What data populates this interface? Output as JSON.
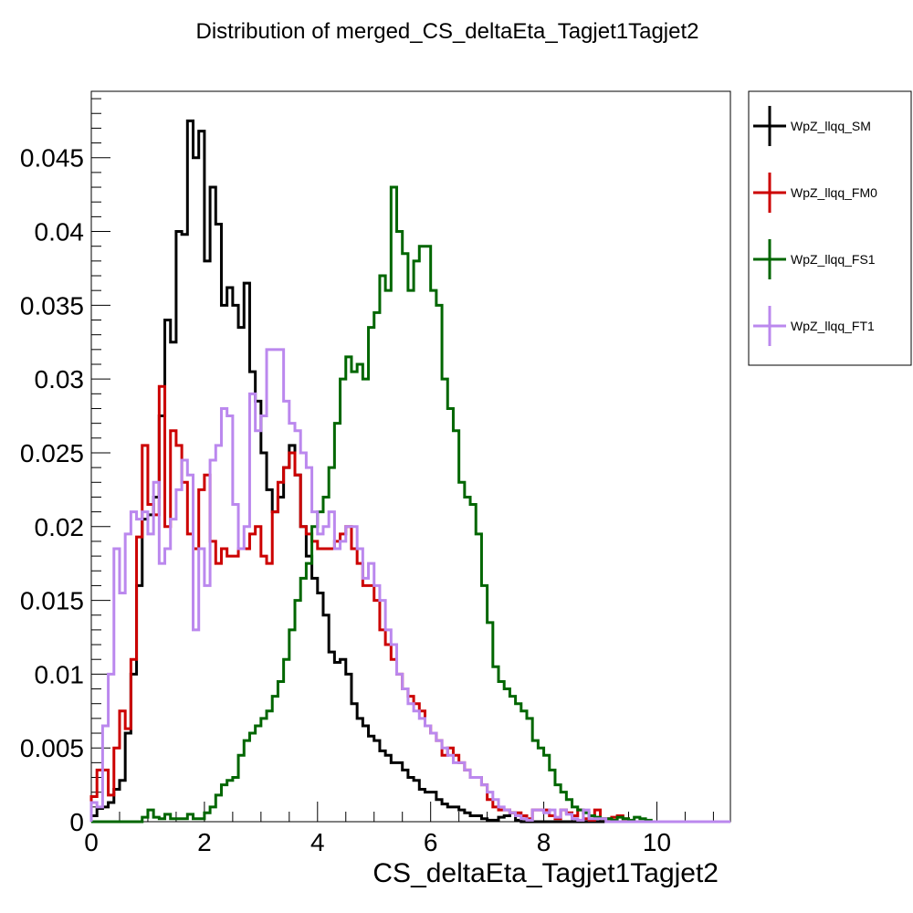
{
  "chart_data": {
    "type": "line",
    "title": "Distribution of merged_CS_deltaEta_Tagjet1Tagjet2",
    "xlabel": "CS_deltaEta_Tagjet1Tagjet2",
    "ylabel": "",
    "xlim": [
      0,
      11.3
    ],
    "ylim": [
      0,
      0.0495
    ],
    "x_ticks": [
      0,
      2,
      4,
      6,
      8,
      10
    ],
    "x_tick_labels": [
      "0",
      "2",
      "4",
      "6",
      "8",
      "10"
    ],
    "y_ticks": [
      0,
      0.005,
      0.01,
      0.015,
      0.02,
      0.025,
      0.03,
      0.035,
      0.04,
      0.045
    ],
    "y_tick_labels": [
      "0",
      "0.005",
      "0.01",
      "0.015",
      "0.02",
      "0.025",
      "0.03",
      "0.035",
      "0.04",
      "0.045"
    ],
    "bin_edges": [
      0,
      0.1,
      0.2,
      0.3,
      0.4,
      0.5,
      0.6,
      0.7,
      0.8,
      0.9,
      1.0,
      1.1,
      1.2,
      1.3,
      1.4,
      1.5,
      1.6,
      1.7,
      1.8,
      1.9,
      2.0,
      2.1,
      2.2,
      2.3,
      2.4,
      2.5,
      2.6,
      2.7,
      2.8,
      2.9,
      3.0,
      3.1,
      3.2,
      3.3,
      3.4,
      3.5,
      3.6,
      3.7,
      3.8,
      3.9,
      4.0,
      4.1,
      4.2,
      4.3,
      4.4,
      4.5,
      4.6,
      4.7,
      4.8,
      4.9,
      5.0,
      5.1,
      5.2,
      5.3,
      5.4,
      5.5,
      5.6,
      5.7,
      5.8,
      5.9,
      6.0,
      6.1,
      6.2,
      6.3,
      6.4,
      6.5,
      6.6,
      6.7,
      6.8,
      6.9,
      7.0,
      7.1,
      7.2,
      7.3,
      7.4,
      7.5,
      7.6,
      7.7,
      7.8,
      7.9,
      8.0,
      8.1,
      8.2,
      8.3,
      8.4,
      8.5,
      8.6,
      8.7,
      8.8,
      8.9,
      9.0,
      9.1,
      9.2,
      9.3,
      9.4,
      9.5,
      9.6,
      9.7,
      9.8,
      9.9,
      10.0,
      10.1,
      10.2,
      10.3,
      10.4,
      10.5,
      10.6,
      10.7,
      10.8,
      10.9,
      11.0,
      11.1,
      11.2,
      11.3
    ],
    "legend_position": "right-outside-top",
    "series": [
      {
        "name": "WpZ_llqq_SM",
        "color": "#000000",
        "values": [
          0.0004,
          0.0009,
          0.001,
          0.0013,
          0.0022,
          0.0028,
          0.006,
          0.01,
          0.016,
          0.0205,
          0.0208,
          0.022,
          0.0275,
          0.034,
          0.0325,
          0.04,
          0.0398,
          0.0475,
          0.045,
          0.0468,
          0.038,
          0.043,
          0.0405,
          0.035,
          0.0362,
          0.035,
          0.0335,
          0.0365,
          0.0305,
          0.0285,
          0.025,
          0.0225,
          0.021,
          0.022,
          0.024,
          0.0255,
          0.0235,
          0.02,
          0.018,
          0.0165,
          0.0155,
          0.014,
          0.0115,
          0.0108,
          0.011,
          0.01,
          0.008,
          0.007,
          0.0065,
          0.0058,
          0.0055,
          0.0048,
          0.0045,
          0.004,
          0.004,
          0.0035,
          0.003,
          0.0028,
          0.0022,
          0.002,
          0.002,
          0.0015,
          0.0012,
          0.001,
          0.001,
          0.0008,
          0.0006,
          0.0004,
          0.0004,
          0.0002,
          0.0001,
          0.0001,
          0.0003,
          0.0004,
          0.0006,
          0.0001,
          0,
          0,
          0,
          0,
          0,
          0,
          0,
          0,
          0,
          0,
          0,
          0,
          0,
          0,
          0,
          0,
          0,
          0,
          0,
          0,
          0,
          0,
          0,
          0,
          0,
          0,
          0,
          0,
          0,
          0,
          0,
          0,
          0,
          0,
          0,
          0,
          0
        ]
      },
      {
        "name": "WpZ_llqq_FM0",
        "color": "#cc0000",
        "values": [
          0.0017,
          0.0035,
          0.0035,
          0.0018,
          0.005,
          0.0075,
          0.0063,
          0.011,
          0.0193,
          0.0255,
          0.0215,
          0.0208,
          0.0295,
          0.02,
          0.0265,
          0.0255,
          0.023,
          0.0195,
          0.0185,
          0.0225,
          0.0235,
          0.019,
          0.0175,
          0.0185,
          0.018,
          0.018,
          0.0185,
          0.0185,
          0.0195,
          0.02,
          0.018,
          0.0175,
          0.021,
          0.023,
          0.024,
          0.025,
          0.0235,
          0.02,
          0.0195,
          0.019,
          0.0185,
          0.0185,
          0.0185,
          0.019,
          0.0195,
          0.02,
          0.0185,
          0.0175,
          0.016,
          0.016,
          0.015,
          0.013,
          0.012,
          0.011,
          0.01,
          0.009,
          0.0085,
          0.008,
          0.0075,
          0.0065,
          0.006,
          0.0055,
          0.0045,
          0.005,
          0.0045,
          0.004,
          0.0035,
          0.003,
          0.003,
          0.0025,
          0.0015,
          0.001,
          0.0008,
          0.0008,
          0.0006,
          0.0006,
          0.0004,
          0.0002,
          0.0008,
          0.0008,
          0.0008,
          0.0004,
          0.0002,
          0.0008,
          0.0006,
          0.0004,
          0.0008,
          0.0002,
          0.0001,
          0.0008,
          0.0002,
          0.0002,
          0.0003,
          0.0004,
          0.0002,
          0,
          0,
          0,
          0,
          0,
          0,
          0,
          0,
          0,
          0,
          0,
          0,
          0,
          0,
          0,
          0,
          0,
          0
        ]
      },
      {
        "name": "WpZ_llqq_FS1",
        "color": "#006600",
        "values": [
          0,
          0,
          0,
          0,
          0,
          0,
          0,
          0,
          0,
          0.0003,
          0.0008,
          0.0003,
          0.0002,
          0.0005,
          0.0002,
          0.0002,
          0.0002,
          0.0005,
          0.0002,
          0.0002,
          0.0006,
          0.001,
          0.0018,
          0.0025,
          0.0028,
          0.003,
          0.0045,
          0.0055,
          0.006,
          0.0065,
          0.007,
          0.0075,
          0.0085,
          0.0095,
          0.011,
          0.013,
          0.015,
          0.0165,
          0.0175,
          0.02,
          0.021,
          0.022,
          0.024,
          0.027,
          0.03,
          0.0315,
          0.0305,
          0.031,
          0.03,
          0.0335,
          0.0345,
          0.037,
          0.036,
          0.043,
          0.04,
          0.0385,
          0.036,
          0.038,
          0.039,
          0.039,
          0.036,
          0.035,
          0.03,
          0.028,
          0.0265,
          0.023,
          0.022,
          0.0215,
          0.0195,
          0.016,
          0.0135,
          0.0105,
          0.0095,
          0.009,
          0.0085,
          0.008,
          0.0075,
          0.007,
          0.0055,
          0.005,
          0.0045,
          0.0035,
          0.0025,
          0.002,
          0.0015,
          0.001,
          0.0008,
          0.0006,
          0.0004,
          0.0003,
          0.0002,
          0.0002,
          0.0001,
          0.0003,
          0.0002,
          0.0001,
          0.0003,
          0.0002,
          0.0001,
          0,
          0,
          0,
          0,
          0,
          0,
          0,
          0,
          0,
          0,
          0,
          0,
          0,
          0,
          0
        ]
      },
      {
        "name": "WpZ_llqq_FT1",
        "color": "#bb88ee",
        "values": [
          0.0013,
          0.001,
          0.0065,
          0.01,
          0.0185,
          0.0155,
          0.0195,
          0.021,
          0.0205,
          0.021,
          0.0195,
          0.023,
          0.0175,
          0.0185,
          0.0205,
          0.0225,
          0.0245,
          0.0235,
          0.013,
          0.0185,
          0.016,
          0.0245,
          0.0255,
          0.028,
          0.0275,
          0.0215,
          0.0185,
          0.02,
          0.029,
          0.0265,
          0.0275,
          0.032,
          0.032,
          0.032,
          0.0285,
          0.027,
          0.0265,
          0.025,
          0.024,
          0.021,
          0.0195,
          0.02,
          0.021,
          0.0185,
          0.019,
          0.02,
          0.02,
          0.0185,
          0.0165,
          0.0175,
          0.016,
          0.015,
          0.013,
          0.012,
          0.01,
          0.009,
          0.008,
          0.0075,
          0.007,
          0.0065,
          0.006,
          0.0055,
          0.005,
          0.0045,
          0.004,
          0.004,
          0.0035,
          0.003,
          0.003,
          0.0025,
          0.002,
          0.0015,
          0.001,
          0.0008,
          0.0006,
          0.0004,
          0.0002,
          0.0001,
          0.0008,
          0.0008,
          0.0006,
          0.0008,
          0.0003,
          0.0008,
          0.0005,
          0.0002,
          0.0001,
          0.0008,
          0.0002,
          0.0002,
          0.0002,
          0,
          0,
          0,
          0,
          0,
          0,
          0,
          0,
          0,
          0,
          0,
          0,
          0,
          0,
          0,
          0,
          0,
          0,
          0,
          0,
          0,
          0
        ]
      }
    ]
  }
}
